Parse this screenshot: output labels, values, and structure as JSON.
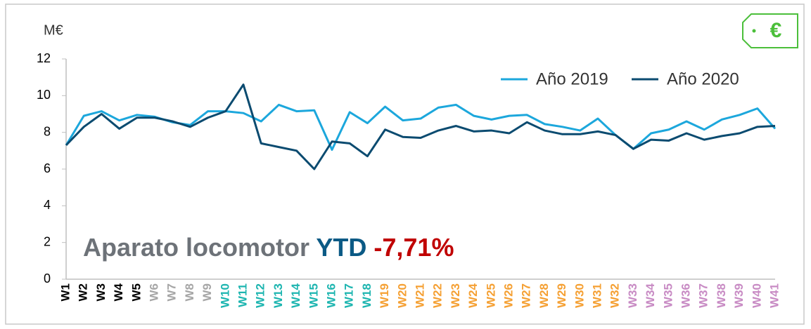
{
  "chart_data": {
    "type": "line",
    "unit_label": "M€",
    "badge": "€",
    "annotation": {
      "label": "Aparato locomotor",
      "ytd": "YTD",
      "value": "-7,71%"
    },
    "categories": [
      "W1",
      "W2",
      "W3",
      "W4",
      "W5",
      "W6",
      "W7",
      "W8",
      "W9",
      "W10",
      "W11",
      "W12",
      "W13",
      "W14",
      "W15",
      "W16",
      "W17",
      "W18",
      "W19",
      "W20",
      "W21",
      "W22",
      "W23",
      "W24",
      "W25",
      "W26",
      "W27",
      "W28",
      "W29",
      "W30",
      "W31",
      "W32",
      "W33",
      "W34",
      "W35",
      "W36",
      "W37",
      "W38",
      "W39",
      "W40",
      "W41"
    ],
    "category_colors": [
      "#000000",
      "#000000",
      "#000000",
      "#000000",
      "#000000",
      "#a6a6a6",
      "#a6a6a6",
      "#a6a6a6",
      "#a6a6a6",
      "#1db5b0",
      "#1db5b0",
      "#1db5b0",
      "#1db5b0",
      "#1db5b0",
      "#1db5b0",
      "#1db5b0",
      "#1db5b0",
      "#1db5b0",
      "#f5a033",
      "#f5a033",
      "#f5a033",
      "#f5a033",
      "#f5a033",
      "#f5a033",
      "#f5a033",
      "#f5a033",
      "#f5a033",
      "#f5a033",
      "#f5a033",
      "#f5a033",
      "#f5a033",
      "#f5a033",
      "#c88bc4",
      "#c88bc4",
      "#c88bc4",
      "#c88bc4",
      "#c88bc4",
      "#c88bc4",
      "#c88bc4",
      "#c88bc4",
      "#c88bc4"
    ],
    "series": [
      {
        "name": "Año 2019",
        "color": "#1ca7dc",
        "values": [
          7.3,
          8.9,
          9.15,
          8.65,
          8.95,
          8.85,
          8.55,
          8.4,
          9.15,
          9.15,
          9.05,
          8.6,
          9.5,
          9.15,
          9.2,
          7.05,
          9.1,
          8.5,
          9.4,
          8.65,
          8.75,
          9.35,
          9.5,
          8.9,
          8.7,
          8.9,
          8.95,
          8.45,
          8.3,
          8.1,
          8.75,
          7.85,
          7.1,
          7.95,
          8.15,
          8.6,
          8.15,
          8.7,
          8.95,
          9.3,
          8.2
        ]
      },
      {
        "name": "Año 2020",
        "color": "#0b4b70",
        "values": [
          7.3,
          8.3,
          9.0,
          8.2,
          8.8,
          8.8,
          8.6,
          8.3,
          8.8,
          9.15,
          10.6,
          7.4,
          7.2,
          7.0,
          6.0,
          7.5,
          7.4,
          6.7,
          8.15,
          7.75,
          7.7,
          8.1,
          8.35,
          8.05,
          8.1,
          7.95,
          8.55,
          8.1,
          7.9,
          7.9,
          8.05,
          7.85,
          7.1,
          7.6,
          7.55,
          7.95,
          7.6,
          7.8,
          7.95,
          8.3,
          8.35
        ]
      }
    ],
    "ylim": [
      0,
      12
    ],
    "yticks": [
      0,
      2,
      4,
      6,
      8,
      10,
      12
    ],
    "grid": false,
    "legend": "top-right"
  }
}
